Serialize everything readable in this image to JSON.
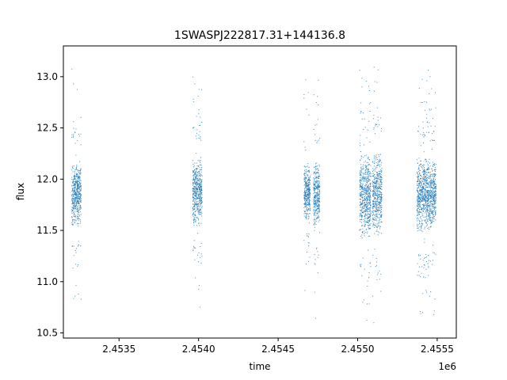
{
  "chart_data": {
    "type": "scatter",
    "title": "1SWASPJ222817.31+144136.8",
    "xlabel": "time",
    "ylabel": "flux",
    "x_offset_label": "1e6",
    "xlim": [
      2453150,
      2455620
    ],
    "ylim": [
      10.45,
      13.3
    ],
    "x_ticks": [
      {
        "value": 2453500,
        "label": "2.4535"
      },
      {
        "value": 2454000,
        "label": "2.4540"
      },
      {
        "value": 2454500,
        "label": "2.4545"
      },
      {
        "value": 2455000,
        "label": "2.4550"
      },
      {
        "value": 2455500,
        "label": "2.4555"
      }
    ],
    "y_ticks": [
      {
        "value": 10.5,
        "label": "10.5"
      },
      {
        "value": 11.0,
        "label": "11.0"
      },
      {
        "value": 11.5,
        "label": "11.5"
      },
      {
        "value": 12.0,
        "label": "12.0"
      },
      {
        "value": 12.5,
        "label": "12.5"
      },
      {
        "value": 13.0,
        "label": "13.0"
      }
    ],
    "grid": false,
    "marker_color": "#1f77b4",
    "series": [
      {
        "clusters": [
          {
            "x_range": [
              2453200,
              2453260
            ],
            "median": 11.85,
            "spread": 0.15,
            "y_min": 10.68,
            "y_max": 13.15
          },
          {
            "x_range": [
              2453960,
              2454020
            ],
            "median": 11.87,
            "spread": 0.16,
            "y_min": 10.72,
            "y_max": 13.1
          },
          {
            "x_range": [
              2454660,
              2454700
            ],
            "median": 11.87,
            "spread": 0.13,
            "y_min": 10.88,
            "y_max": 13.0
          },
          {
            "x_range": [
              2454720,
              2454760
            ],
            "median": 11.85,
            "spread": 0.16,
            "y_min": 10.57,
            "y_max": 13.0
          },
          {
            "x_range": [
              2455010,
              2455080
            ],
            "median": 11.83,
            "spread": 0.2,
            "y_min": 10.58,
            "y_max": 13.15
          },
          {
            "x_range": [
              2455090,
              2455150
            ],
            "median": 11.85,
            "spread": 0.2,
            "y_min": 10.6,
            "y_max": 13.15
          },
          {
            "x_range": [
              2455370,
              2455450
            ],
            "median": 11.85,
            "spread": 0.18,
            "y_min": 10.6,
            "y_max": 13.1
          },
          {
            "x_range": [
              2455450,
              2455490
            ],
            "median": 11.85,
            "spread": 0.16,
            "y_min": 10.65,
            "y_max": 13.05
          }
        ]
      }
    ]
  }
}
